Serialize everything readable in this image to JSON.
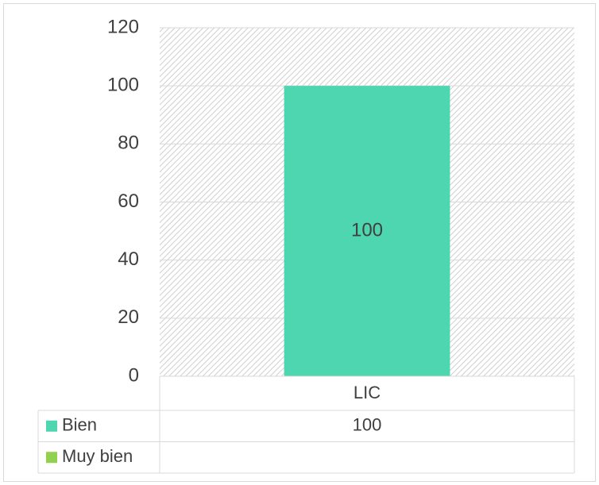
{
  "chart_data": {
    "type": "bar",
    "stacked": true,
    "categories": [
      "LIC"
    ],
    "series": [
      {
        "name": "Bien",
        "color": "#4dd6b0",
        "values": [
          100
        ]
      },
      {
        "name": "Muy bien",
        "color": "#92d050",
        "values": [
          null
        ]
      }
    ],
    "ylim": [
      0,
      120
    ],
    "yticks": [
      0,
      20,
      40,
      60,
      80,
      100,
      120
    ],
    "grid": true,
    "data_table": true
  }
}
